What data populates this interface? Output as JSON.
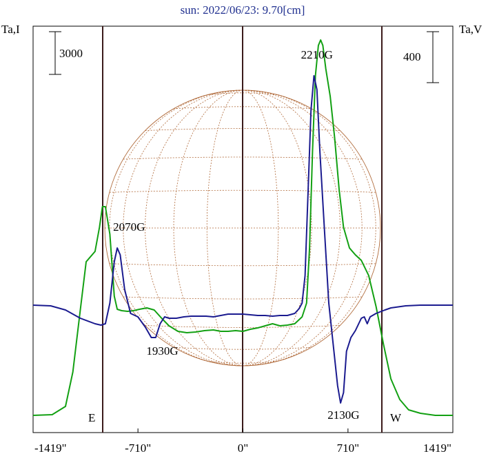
{
  "chart_data": {
    "type": "line",
    "title": "sun: 2022/06/23: 9.70[cm]",
    "ylabel_left": "Ta,I",
    "ylabel_right": "Ta,V",
    "scale_bar_left": "3000",
    "scale_bar_right": "400",
    "xlim": [
      -1419,
      1419
    ],
    "x_ticks": [
      {
        "value": -1419,
        "label": "-1419\""
      },
      {
        "value": -710,
        "label": "-710\""
      },
      {
        "value": 0,
        "label": "0\""
      },
      {
        "value": 710,
        "label": "710\""
      },
      {
        "value": 1419,
        "label": "1419\""
      }
    ],
    "limb_labels": {
      "east": "E",
      "west": "W"
    },
    "limb_x": [
      -945,
      945
    ],
    "series": [
      {
        "color": "#12a012",
        "points": [
          [
            -1419,
            603
          ],
          [
            -1290,
            602
          ],
          [
            -1200,
            590
          ],
          [
            -1150,
            540
          ],
          [
            -1100,
            450
          ],
          [
            -1060,
            380
          ],
          [
            -1000,
            365
          ],
          [
            -970,
            330
          ],
          [
            -950,
            300
          ],
          [
            -930,
            300
          ],
          [
            -900,
            340
          ],
          [
            -870,
            430
          ],
          [
            -850,
            449
          ],
          [
            -820,
            451
          ],
          [
            -780,
            452
          ],
          [
            -740,
            451
          ],
          [
            -700,
            449
          ],
          [
            -650,
            447
          ],
          [
            -600,
            450
          ],
          [
            -550,
            462
          ],
          [
            -500,
            473
          ],
          [
            -440,
            481
          ],
          [
            -380,
            483
          ],
          [
            -320,
            482
          ],
          [
            -260,
            480
          ],
          [
            -200,
            479
          ],
          [
            -150,
            481
          ],
          [
            -100,
            481
          ],
          [
            -50,
            480
          ],
          [
            0,
            481
          ],
          [
            50,
            478
          ],
          [
            100,
            476
          ],
          [
            150,
            473
          ],
          [
            200,
            470
          ],
          [
            250,
            473
          ],
          [
            300,
            472
          ],
          [
            350,
            470
          ],
          [
            400,
            460
          ],
          [
            430,
            440
          ],
          [
            450,
            360
          ],
          [
            470,
            220
          ],
          [
            490,
            110
          ],
          [
            510,
            66
          ],
          [
            525,
            58
          ],
          [
            540,
            66
          ],
          [
            560,
            100
          ],
          [
            590,
            140
          ],
          [
            620,
            200
          ],
          [
            650,
            275
          ],
          [
            680,
            330
          ],
          [
            720,
            360
          ],
          [
            760,
            370
          ],
          [
            800,
            378
          ],
          [
            850,
            400
          ],
          [
            900,
            445
          ],
          [
            950,
            500
          ],
          [
            1000,
            550
          ],
          [
            1060,
            580
          ],
          [
            1120,
            595
          ],
          [
            1200,
            600
          ],
          [
            1300,
            603
          ],
          [
            1419,
            603
          ]
        ]
      },
      {
        "color": "#1a1a8f",
        "points": [
          [
            -1419,
            443
          ],
          [
            -1300,
            444
          ],
          [
            -1200,
            450
          ],
          [
            -1100,
            462
          ],
          [
            -1000,
            470
          ],
          [
            -960,
            472
          ],
          [
            -930,
            470
          ],
          [
            -900,
            440
          ],
          [
            -870,
            380
          ],
          [
            -850,
            360
          ],
          [
            -830,
            370
          ],
          [
            -800,
            420
          ],
          [
            -760,
            455
          ],
          [
            -710,
            460
          ],
          [
            -660,
            475
          ],
          [
            -620,
            490
          ],
          [
            -590,
            490
          ],
          [
            -560,
            470
          ],
          [
            -530,
            460
          ],
          [
            -500,
            462
          ],
          [
            -450,
            462
          ],
          [
            -400,
            460
          ],
          [
            -350,
            459
          ],
          [
            -300,
            459
          ],
          [
            -250,
            459
          ],
          [
            -200,
            460
          ],
          [
            -150,
            458
          ],
          [
            -100,
            456
          ],
          [
            -50,
            456
          ],
          [
            0,
            456
          ],
          [
            50,
            457
          ],
          [
            100,
            458
          ],
          [
            150,
            458
          ],
          [
            200,
            459
          ],
          [
            250,
            458
          ],
          [
            300,
            458
          ],
          [
            350,
            455
          ],
          [
            380,
            448
          ],
          [
            400,
            440
          ],
          [
            420,
            400
          ],
          [
            440,
            280
          ],
          [
            460,
            160
          ],
          [
            480,
            110
          ],
          [
            500,
            130
          ],
          [
            520,
            220
          ],
          [
            550,
            330
          ],
          [
            580,
            440
          ],
          [
            610,
            500
          ],
          [
            640,
            560
          ],
          [
            660,
            585
          ],
          [
            680,
            570
          ],
          [
            700,
            510
          ],
          [
            730,
            490
          ],
          [
            760,
            480
          ],
          [
            800,
            462
          ],
          [
            820,
            460
          ],
          [
            840,
            470
          ],
          [
            860,
            460
          ],
          [
            900,
            455
          ],
          [
            960,
            450
          ],
          [
            1000,
            447
          ],
          [
            1100,
            444
          ],
          [
            1200,
            443
          ],
          [
            1300,
            443
          ],
          [
            1419,
            443
          ]
        ]
      }
    ],
    "annotations": [
      {
        "text": "2070G",
        "x": -770,
        "y": 335
      },
      {
        "text": "1930G",
        "x": -545,
        "y": 515
      },
      {
        "text": "2210G",
        "x": 500,
        "y": 85
      },
      {
        "text": "2130G",
        "x": 680,
        "y": 608
      }
    ],
    "ylim": [
      640,
      30
    ],
    "grid": false,
    "legend": "none"
  }
}
